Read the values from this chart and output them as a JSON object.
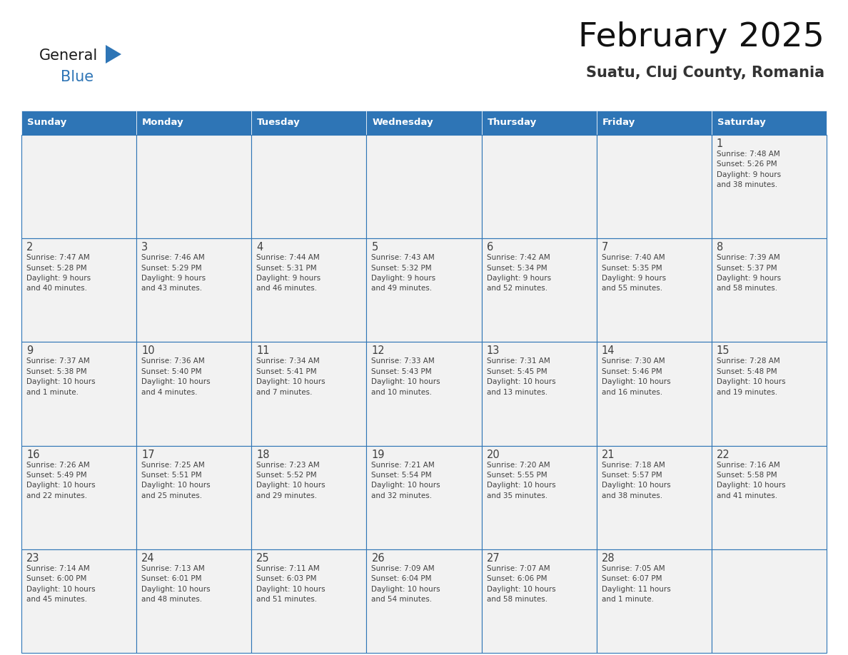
{
  "title": "February 2025",
  "subtitle": "Suatu, Cluj County, Romania",
  "header_color": "#2E75B6",
  "header_text_color": "#FFFFFF",
  "cell_bg_color": "#F2F2F2",
  "border_color": "#2E75B6",
  "day_number_color": "#404040",
  "text_color": "#404040",
  "days_of_week": [
    "Sunday",
    "Monday",
    "Tuesday",
    "Wednesday",
    "Thursday",
    "Friday",
    "Saturday"
  ],
  "calendar_data": [
    [
      {
        "day": "",
        "info": ""
      },
      {
        "day": "",
        "info": ""
      },
      {
        "day": "",
        "info": ""
      },
      {
        "day": "",
        "info": ""
      },
      {
        "day": "",
        "info": ""
      },
      {
        "day": "",
        "info": ""
      },
      {
        "day": "1",
        "info": "Sunrise: 7:48 AM\nSunset: 5:26 PM\nDaylight: 9 hours\nand 38 minutes."
      }
    ],
    [
      {
        "day": "2",
        "info": "Sunrise: 7:47 AM\nSunset: 5:28 PM\nDaylight: 9 hours\nand 40 minutes."
      },
      {
        "day": "3",
        "info": "Sunrise: 7:46 AM\nSunset: 5:29 PM\nDaylight: 9 hours\nand 43 minutes."
      },
      {
        "day": "4",
        "info": "Sunrise: 7:44 AM\nSunset: 5:31 PM\nDaylight: 9 hours\nand 46 minutes."
      },
      {
        "day": "5",
        "info": "Sunrise: 7:43 AM\nSunset: 5:32 PM\nDaylight: 9 hours\nand 49 minutes."
      },
      {
        "day": "6",
        "info": "Sunrise: 7:42 AM\nSunset: 5:34 PM\nDaylight: 9 hours\nand 52 minutes."
      },
      {
        "day": "7",
        "info": "Sunrise: 7:40 AM\nSunset: 5:35 PM\nDaylight: 9 hours\nand 55 minutes."
      },
      {
        "day": "8",
        "info": "Sunrise: 7:39 AM\nSunset: 5:37 PM\nDaylight: 9 hours\nand 58 minutes."
      }
    ],
    [
      {
        "day": "9",
        "info": "Sunrise: 7:37 AM\nSunset: 5:38 PM\nDaylight: 10 hours\nand 1 minute."
      },
      {
        "day": "10",
        "info": "Sunrise: 7:36 AM\nSunset: 5:40 PM\nDaylight: 10 hours\nand 4 minutes."
      },
      {
        "day": "11",
        "info": "Sunrise: 7:34 AM\nSunset: 5:41 PM\nDaylight: 10 hours\nand 7 minutes."
      },
      {
        "day": "12",
        "info": "Sunrise: 7:33 AM\nSunset: 5:43 PM\nDaylight: 10 hours\nand 10 minutes."
      },
      {
        "day": "13",
        "info": "Sunrise: 7:31 AM\nSunset: 5:45 PM\nDaylight: 10 hours\nand 13 minutes."
      },
      {
        "day": "14",
        "info": "Sunrise: 7:30 AM\nSunset: 5:46 PM\nDaylight: 10 hours\nand 16 minutes."
      },
      {
        "day": "15",
        "info": "Sunrise: 7:28 AM\nSunset: 5:48 PM\nDaylight: 10 hours\nand 19 minutes."
      }
    ],
    [
      {
        "day": "16",
        "info": "Sunrise: 7:26 AM\nSunset: 5:49 PM\nDaylight: 10 hours\nand 22 minutes."
      },
      {
        "day": "17",
        "info": "Sunrise: 7:25 AM\nSunset: 5:51 PM\nDaylight: 10 hours\nand 25 minutes."
      },
      {
        "day": "18",
        "info": "Sunrise: 7:23 AM\nSunset: 5:52 PM\nDaylight: 10 hours\nand 29 minutes."
      },
      {
        "day": "19",
        "info": "Sunrise: 7:21 AM\nSunset: 5:54 PM\nDaylight: 10 hours\nand 32 minutes."
      },
      {
        "day": "20",
        "info": "Sunrise: 7:20 AM\nSunset: 5:55 PM\nDaylight: 10 hours\nand 35 minutes."
      },
      {
        "day": "21",
        "info": "Sunrise: 7:18 AM\nSunset: 5:57 PM\nDaylight: 10 hours\nand 38 minutes."
      },
      {
        "day": "22",
        "info": "Sunrise: 7:16 AM\nSunset: 5:58 PM\nDaylight: 10 hours\nand 41 minutes."
      }
    ],
    [
      {
        "day": "23",
        "info": "Sunrise: 7:14 AM\nSunset: 6:00 PM\nDaylight: 10 hours\nand 45 minutes."
      },
      {
        "day": "24",
        "info": "Sunrise: 7:13 AM\nSunset: 6:01 PM\nDaylight: 10 hours\nand 48 minutes."
      },
      {
        "day": "25",
        "info": "Sunrise: 7:11 AM\nSunset: 6:03 PM\nDaylight: 10 hours\nand 51 minutes."
      },
      {
        "day": "26",
        "info": "Sunrise: 7:09 AM\nSunset: 6:04 PM\nDaylight: 10 hours\nand 54 minutes."
      },
      {
        "day": "27",
        "info": "Sunrise: 7:07 AM\nSunset: 6:06 PM\nDaylight: 10 hours\nand 58 minutes."
      },
      {
        "day": "28",
        "info": "Sunrise: 7:05 AM\nSunset: 6:07 PM\nDaylight: 11 hours\nand 1 minute."
      },
      {
        "day": "",
        "info": ""
      }
    ]
  ],
  "logo_general_color": "#1a1a1a",
  "logo_blue_color": "#2E75B6",
  "figure_bg": "#FFFFFF",
  "fig_width": 11.88,
  "fig_height": 9.18,
  "dpi": 100
}
